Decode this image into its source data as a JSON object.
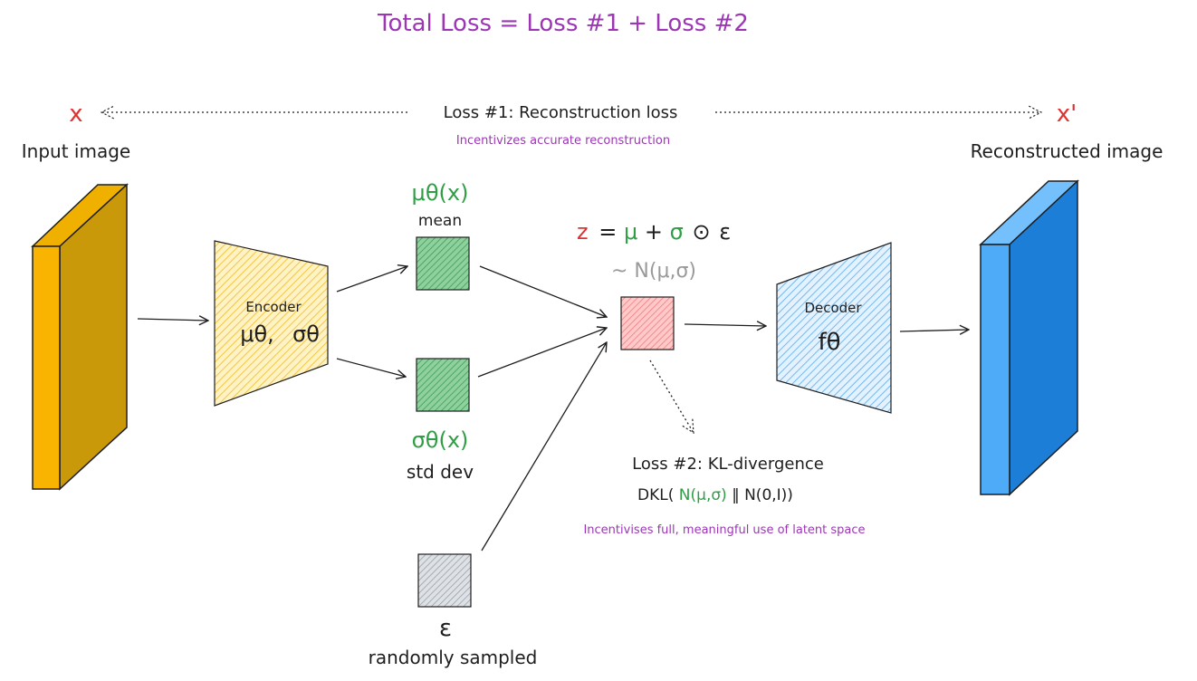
{
  "title": "Total Loss = Loss #1 + Loss #2",
  "input": {
    "symbol": "x",
    "label": "Input image"
  },
  "output": {
    "symbol": "x'",
    "label": "Reconstructed image"
  },
  "loss1": {
    "label": "Loss #1: Reconstruction loss",
    "note": "Incentivizes accurate reconstruction"
  },
  "encoder": {
    "label": "Encoder",
    "params_main": "μθ,",
    "params_sigma": "σθ"
  },
  "decoder": {
    "label": "Decoder",
    "func": "fθ"
  },
  "mean": {
    "formula": "μθ(x)",
    "label": "mean"
  },
  "std": {
    "formula": "σθ(x)",
    "label": "std dev"
  },
  "epsilon": {
    "symbol": "ε",
    "label": "randomly sampled"
  },
  "z": {
    "z": "z",
    "eq": "=",
    "mu": "μ",
    "plus": "+",
    "sigma": "σ",
    "odot": "⊙",
    "eps": "ε"
  },
  "dist": "~ N(μ,σ)",
  "loss2": {
    "label": "Loss #2: KL-divergence",
    "formula_prefix": "DKL(",
    "formula_n1": "N(μ,σ)",
    "formula_rest": " ‖ N(0,I))",
    "note": "Incentivises full, meaningful use of latent space"
  },
  "colors": {
    "purple": "#9c36b5",
    "green": "#2f9e44",
    "red": "#e03131",
    "input_front": "#f8b400",
    "input_side": "#c9990a",
    "output_front": "#4dabf7",
    "output_side": "#1c7ed6",
    "encoder_fill": "#ffd866",
    "decoder_fill": "#a5d8ff",
    "latent_green": "#8ce99a",
    "latent_red": "#ffa8a8",
    "epsilon_gray": "#ced4da"
  }
}
